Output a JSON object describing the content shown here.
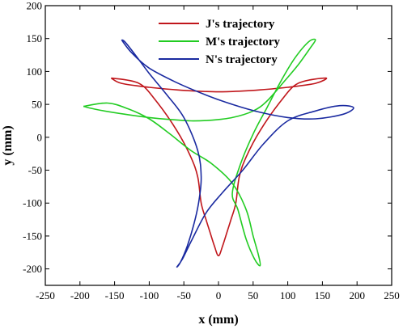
{
  "chart_data": {
    "type": "line",
    "xlabel": "x (mm)",
    "ylabel": "y (mm)",
    "xlim": [
      -250,
      250
    ],
    "ylim": [
      -225,
      200
    ],
    "xticks": [
      -250,
      -200,
      -150,
      -100,
      -50,
      0,
      50,
      100,
      150,
      200,
      250
    ],
    "yticks": [
      -200,
      -150,
      -100,
      -50,
      0,
      50,
      100,
      150,
      200
    ],
    "grid": false,
    "legend_position": "top-center",
    "series": [
      {
        "name": "J's trajectory",
        "color": "#c0161b",
        "x": [
          -155,
          -115,
          -90,
          -60,
          -40,
          -30,
          -25,
          -18,
          -12,
          -6,
          0,
          6,
          12,
          18,
          25,
          30,
          40,
          60,
          90,
          115,
          155,
          140,
          100,
          60,
          30,
          0,
          -30,
          -60,
          -100,
          -140,
          -155
        ],
        "y": [
          90,
          82,
          55,
          10,
          -30,
          -60,
          -100,
          -125,
          -145,
          -165,
          -180,
          -165,
          -145,
          -125,
          -100,
          -60,
          -30,
          10,
          55,
          82,
          90,
          82,
          76,
          72,
          70,
          69,
          70,
          72,
          76,
          82,
          90
        ]
      },
      {
        "name": "M's trajectory",
        "color": "#22cc22",
        "x": [
          -195,
          -160,
          -130,
          -100,
          -70,
          -40,
          -10,
          20,
          40,
          50,
          58,
          60,
          52,
          40,
          28,
          20,
          32,
          50,
          70,
          90,
          110,
          130,
          140,
          132,
          115,
          95,
          70,
          50,
          20,
          -10,
          -40,
          -70,
          -100,
          -135,
          -175,
          -195
        ],
        "y": [
          47,
          52,
          43,
          28,
          5,
          -20,
          -40,
          -70,
          -110,
          -150,
          -180,
          -195,
          -185,
          -155,
          -110,
          -85,
          -40,
          5,
          45,
          85,
          120,
          145,
          148,
          135,
          110,
          85,
          55,
          40,
          30,
          26,
          25,
          27,
          30,
          35,
          42,
          47
        ]
      },
      {
        "name": "N's trajectory",
        "color": "#1a2aa0",
        "x": [
          -140,
          -135,
          -120,
          -100,
          -75,
          -50,
          -30,
          -25,
          -28,
          -35,
          -45,
          -55,
          -60,
          -52,
          -38,
          -18,
          5,
          35,
          65,
          100,
          140,
          175,
          195,
          180,
          140,
          100,
          60,
          20,
          -20,
          -60,
          -100,
          -125,
          -140
        ],
        "y": [
          148,
          145,
          125,
          97,
          65,
          30,
          -20,
          -60,
          -95,
          -130,
          -165,
          -190,
          -197,
          -185,
          -155,
          -115,
          -85,
          -50,
          -10,
          25,
          40,
          48,
          45,
          35,
          28,
          30,
          38,
          50,
          65,
          83,
          105,
          128,
          148
        ]
      }
    ]
  }
}
